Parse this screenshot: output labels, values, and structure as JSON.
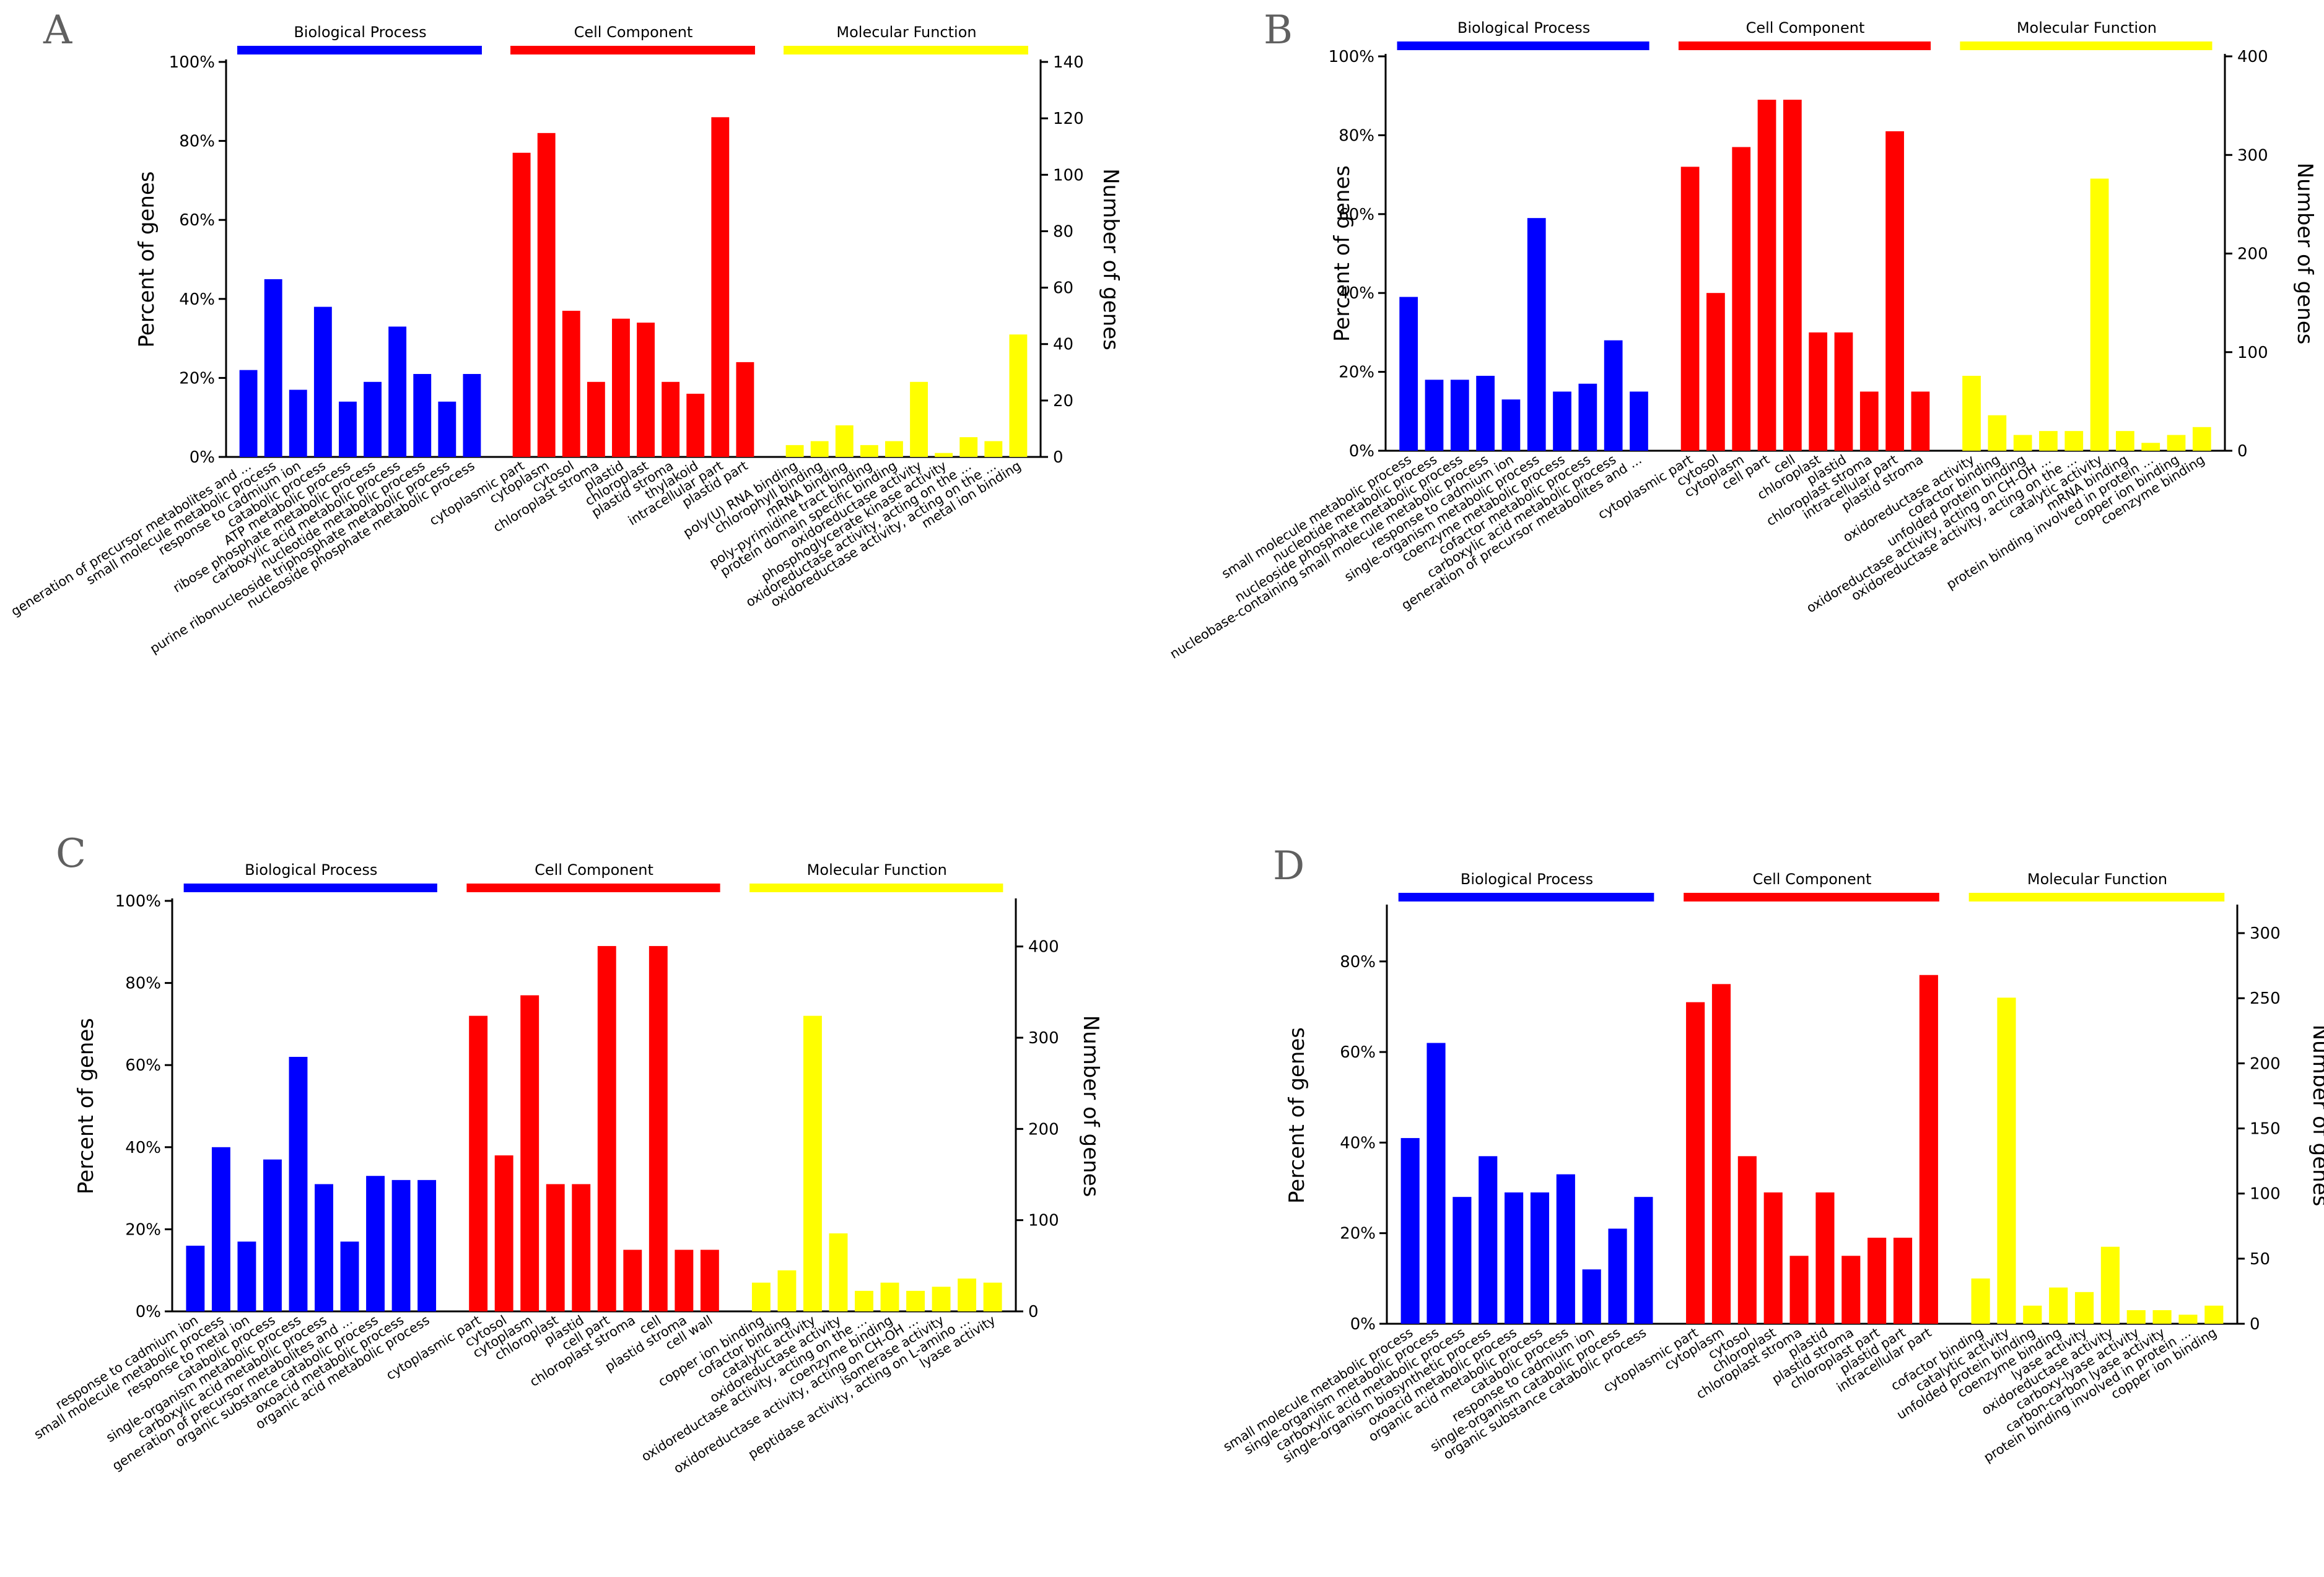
{
  "chart_data": [
    {
      "panel": "A",
      "type": "bar",
      "ylabel_left": "Percent of genes",
      "ylabel_right": "Number of genes",
      "yticks_left": [
        "0%",
        "20%",
        "40%",
        "60%",
        "80%",
        "100%"
      ],
      "yticks_right": [
        "0",
        "20",
        "40",
        "60",
        "80",
        "100",
        "120",
        "140"
      ],
      "ylim_percent": [
        0,
        100
      ],
      "ylim_count": [
        0,
        140
      ],
      "groups": [
        {
          "name": "Biological Process",
          "color": "#0000ff",
          "categories": [
            "generation of precursor metabolites and ...",
            "small molecule metabolic process",
            "response to cadmium ion",
            "catabolic process",
            "ATP metabolic process",
            "ribose phosphate metabolic process",
            "carboxylic acid metabolic process",
            "nucleotide metabolic process",
            "purine ribonucleoside triphosphate metabolic process",
            "nucleoside phosphate metabolic process"
          ],
          "values": [
            22,
            45,
            17,
            38,
            14,
            19,
            33,
            21,
            14,
            21
          ]
        },
        {
          "name": "Cell Component",
          "color": "#ff0000",
          "categories": [
            "cytoplasmic part",
            "cytoplasm",
            "cytosol",
            "chloroplast stroma",
            "plastid",
            "chloroplast",
            "plastid stroma",
            "thylakoid",
            "intracellular part",
            "plastid part"
          ],
          "values": [
            77,
            82,
            37,
            19,
            35,
            34,
            19,
            16,
            86,
            24
          ]
        },
        {
          "name": "Molecular Function",
          "color": "#ffff00",
          "categories": [
            "poly(U) RNA binding",
            "chlorophyll binding",
            "mRNA binding",
            "poly-pyrimidine tract binding",
            "protein domain specific binding",
            "oxidoreductase activity",
            "phosphoglycerate kinase activity",
            "oxidoreductase activity, acting on the ...",
            "oxidoreductase activity, acting on the ...",
            "metal ion binding"
          ],
          "values": [
            3,
            4,
            8,
            3,
            4,
            19,
            1,
            5,
            4,
            31
          ]
        }
      ]
    },
    {
      "panel": "B",
      "type": "bar",
      "ylabel_left": "Percent of genes",
      "ylabel_right": "Number of genes",
      "yticks_left": [
        "0%",
        "20%",
        "40%",
        "60%",
        "80%",
        "100%"
      ],
      "yticks_right": [
        "0",
        "100",
        "200",
        "300",
        "400"
      ],
      "ylim_percent": [
        0,
        100
      ],
      "ylim_count": [
        0,
        400
      ],
      "groups": [
        {
          "name": "Biological Process",
          "color": "#0000ff",
          "categories": [
            "small molecule metabolic process",
            "nucleotide metabolic process",
            "nucleoside phosphate metabolic process",
            "nucleobase-containing small molecule metabolic process",
            "response to cadmium ion",
            "single-organism metabolic process",
            "coenzyme metabolic process",
            "cofactor metabolic process",
            "carboxylic acid metabolic process",
            "generation of precursor metabolites and ..."
          ],
          "values": [
            39,
            18,
            18,
            19,
            13,
            59,
            15,
            17,
            28,
            15
          ]
        },
        {
          "name": "Cell Component",
          "color": "#ff0000",
          "categories": [
            "cytoplasmic part",
            "cytosol",
            "cytoplasm",
            "cell part",
            "cell",
            "chloroplast",
            "plastid",
            "chloroplast stroma",
            "intracellular part",
            "plastid stroma"
          ],
          "values": [
            72,
            40,
            77,
            89,
            89,
            30,
            30,
            15,
            81,
            15
          ]
        },
        {
          "name": "Molecular Function",
          "color": "#ffff00",
          "categories": [
            "oxidoreductase activity",
            "cofactor binding",
            "unfolded protein binding",
            "oxidoreductase activity, acting on CH-OH ...",
            "oxidoreductase activity, acting on the ...",
            "catalytic activity",
            "mRNA binding",
            "protein binding involved in protein ...",
            "copper ion binding",
            "coenzyme binding"
          ],
          "values": [
            19,
            9,
            4,
            5,
            5,
            69,
            5,
            2,
            4,
            6
          ]
        }
      ]
    },
    {
      "panel": "C",
      "type": "bar",
      "ylabel_left": "Percent of genes",
      "ylabel_right": "Number of genes",
      "yticks_left": [
        "0%",
        "20%",
        "40%",
        "60%",
        "80%",
        "100%"
      ],
      "yticks_right": [
        "0",
        "100",
        "200",
        "300",
        "400"
      ],
      "ylim_percent": [
        0,
        100
      ],
      "ylim_count": [
        0,
        450
      ],
      "groups": [
        {
          "name": "Biological Process",
          "color": "#0000ff",
          "categories": [
            "response to cadmium ion",
            "small molecule metabolic process",
            "response to metal ion",
            "catabolic process",
            "single-organism metabolic process",
            "carboxylic acid metabolic process",
            "generation of precursor metabolites and ...",
            "organic substance catabolic process",
            "oxoacid metabolic process",
            "organic acid metabolic process"
          ],
          "values": [
            16,
            40,
            17,
            37,
            62,
            31,
            17,
            33,
            32,
            32
          ]
        },
        {
          "name": "Cell Component",
          "color": "#ff0000",
          "categories": [
            "cytoplasmic part",
            "cytosol",
            "cytoplasm",
            "chloroplast",
            "plastid",
            "cell part",
            "chloroplast stroma",
            "cell",
            "plastid stroma",
            "cell wall"
          ],
          "values": [
            72,
            38,
            77,
            31,
            31,
            89,
            15,
            89,
            15,
            15
          ]
        },
        {
          "name": "Molecular Function",
          "color": "#ffff00",
          "categories": [
            "copper ion binding",
            "cofactor binding",
            "catalytic activity",
            "oxidoreductase activity",
            "oxidoreductase activity, acting on the ...",
            "coenzyme binding",
            "oxidoreductase activity, acting on CH-OH ...",
            "isomerase activity",
            "peptidase activity, acting on L-amino ...",
            "lyase activity"
          ],
          "values": [
            7,
            10,
            72,
            19,
            5,
            7,
            5,
            6,
            8,
            7
          ]
        }
      ]
    },
    {
      "panel": "D",
      "type": "bar",
      "ylabel_left": "Percent of genes",
      "ylabel_right": "Number of genes",
      "yticks_left": [
        "0%",
        "20%",
        "40%",
        "60%",
        "80%"
      ],
      "yticks_right": [
        "0",
        "50",
        "100",
        "150",
        "200",
        "250",
        "300"
      ],
      "ylim_percent": [
        0,
        92
      ],
      "ylim_count": [
        0,
        320
      ],
      "groups": [
        {
          "name": "Biological Process",
          "color": "#0000ff",
          "categories": [
            "small molecule metabolic process",
            "single-organism metabolic process",
            "carboxylic acid metabolic process",
            "single-organism biosynthetic process",
            "oxoacid metabolic process",
            "organic acid metabolic process",
            "catabolic process",
            "response to cadmium ion",
            "single-organism catabolic process",
            "organic substance catabolic process"
          ],
          "values": [
            41,
            62,
            28,
            37,
            29,
            29,
            33,
            12,
            21,
            28
          ]
        },
        {
          "name": "Cell Component",
          "color": "#ff0000",
          "categories": [
            "cytoplasmic part",
            "cytoplasm",
            "cytosol",
            "chloroplast",
            "chloroplast stroma",
            "plastid",
            "plastid stroma",
            "chloroplast part",
            "plastid part",
            "intracellular part"
          ],
          "values": [
            71,
            75,
            37,
            29,
            15,
            29,
            15,
            19,
            19,
            77
          ]
        },
        {
          "name": "Molecular Function",
          "color": "#ffff00",
          "categories": [
            "cofactor binding",
            "catalytic activity",
            "unfolded protein binding",
            "coenzyme binding",
            "lyase activity",
            "oxidoreductase activity",
            "carboxy-lyase activity",
            "carbon-carbon lyase activity",
            "protein binding involved in protein ...",
            "copper ion binding"
          ],
          "values": [
            10,
            72,
            4,
            8,
            7,
            17,
            3,
            3,
            2,
            4
          ]
        }
      ]
    }
  ]
}
